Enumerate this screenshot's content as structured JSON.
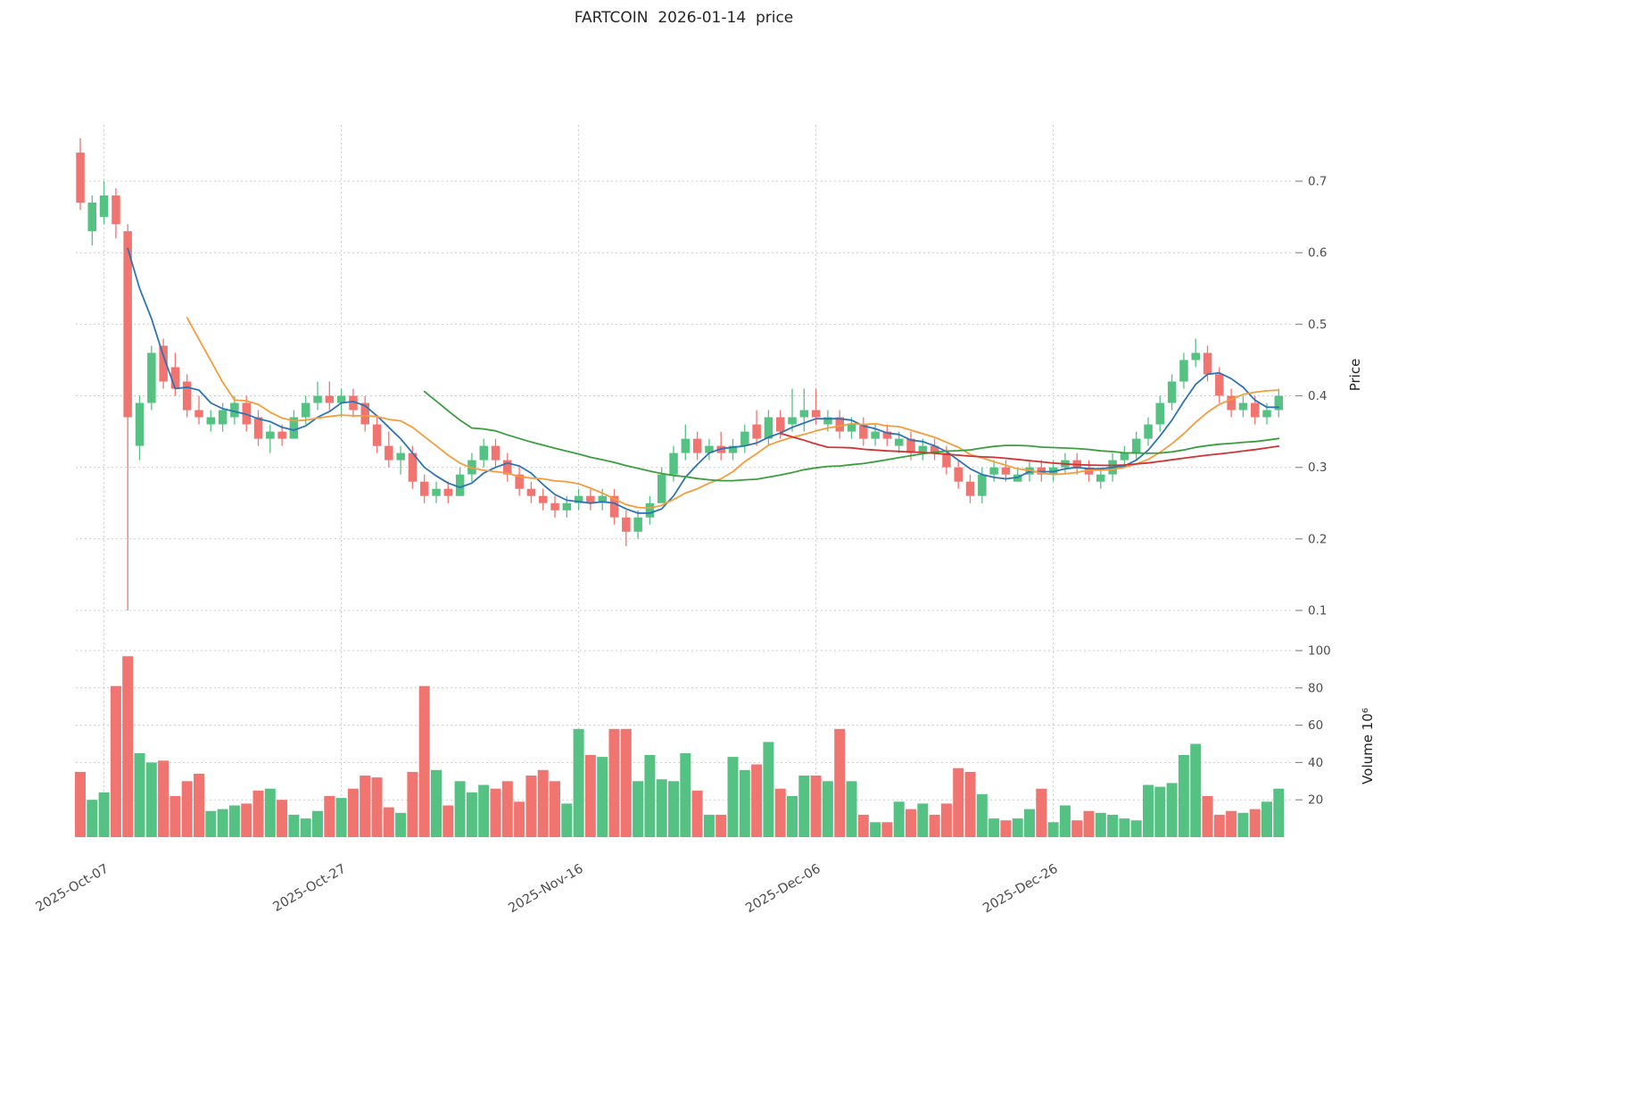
{
  "title": "FARTCOIN  2026-01-14  price",
  "axes": {
    "price_label": "Price",
    "volume_label": "Volume",
    "volume_scale": "10⁶"
  },
  "colors": {
    "up": "#55c284",
    "down": "#f0746f",
    "ma_blue": "#2d74b5",
    "ma_orange": "#f59c3c",
    "ma_green": "#3a9e3f",
    "ma_red": "#cf3333",
    "grid": "#cccccc",
    "tick_text": "#4d4d4d",
    "title_text": "#262626"
  },
  "chart_data": {
    "type": "candlestick+volume",
    "title": "FARTCOIN  2026-01-14  price",
    "ylabel": "Price",
    "volume_ylabel": "Volume 10⁶",
    "grid": true,
    "price_ticks": [
      0.1,
      0.2,
      0.3,
      0.4,
      0.5,
      0.6,
      0.7
    ],
    "volume_ticks": [
      20,
      40,
      60,
      80,
      100
    ],
    "x_ticks": {
      "labels": [
        "2025-Oct-07",
        "2025-Oct-27",
        "2025-Nov-16",
        "2025-Dec-06",
        "2025-Dec-26"
      ],
      "indices": [
        2,
        22,
        42,
        62,
        82
      ]
    },
    "moving_averages": [
      {
        "name": "ma-5",
        "period": 5,
        "color_key": "ma_blue"
      },
      {
        "name": "ma-10",
        "period": 10,
        "color_key": "ma_orange"
      },
      {
        "name": "ma-30",
        "period": 30,
        "color_key": "ma_green"
      },
      {
        "name": "ma-60",
        "period": 60,
        "color_key": "ma_red"
      }
    ],
    "dates": [
      "2025-10-05",
      "2025-10-06",
      "2025-10-07",
      "2025-10-08",
      "2025-10-09",
      "2025-10-10",
      "2025-10-11",
      "2025-10-12",
      "2025-10-13",
      "2025-10-14",
      "2025-10-15",
      "2025-10-16",
      "2025-10-17",
      "2025-10-18",
      "2025-10-19",
      "2025-10-20",
      "2025-10-21",
      "2025-10-22",
      "2025-10-23",
      "2025-10-24",
      "2025-10-25",
      "2025-10-26",
      "2025-10-27",
      "2025-10-28",
      "2025-10-29",
      "2025-10-30",
      "2025-10-31",
      "2025-11-01",
      "2025-11-02",
      "2025-11-03",
      "2025-11-04",
      "2025-11-05",
      "2025-11-06",
      "2025-11-07",
      "2025-11-08",
      "2025-11-09",
      "2025-11-10",
      "2025-11-11",
      "2025-11-12",
      "2025-11-13",
      "2025-11-14",
      "2025-11-15",
      "2025-11-16",
      "2025-11-17",
      "2025-11-18",
      "2025-11-19",
      "2025-11-20",
      "2025-11-21",
      "2025-11-22",
      "2025-11-23",
      "2025-11-24",
      "2025-11-25",
      "2025-11-26",
      "2025-11-27",
      "2025-11-28",
      "2025-11-29",
      "2025-11-30",
      "2025-12-01",
      "2025-12-02",
      "2025-12-03",
      "2025-12-04",
      "2025-12-05",
      "2025-12-06",
      "2025-12-07",
      "2025-12-08",
      "2025-12-09",
      "2025-12-10",
      "2025-12-11",
      "2025-12-12",
      "2025-12-13",
      "2025-12-14",
      "2025-12-15",
      "2025-12-16",
      "2025-12-17",
      "2025-12-18",
      "2025-12-19",
      "2025-12-20",
      "2025-12-21",
      "2025-12-22",
      "2025-12-23",
      "2025-12-24",
      "2025-12-25",
      "2025-12-26",
      "2025-12-27",
      "2025-12-28",
      "2025-12-29",
      "2025-12-30",
      "2025-12-31",
      "2026-01-01",
      "2026-01-02",
      "2026-01-03",
      "2026-01-04",
      "2026-01-05",
      "2026-01-06",
      "2026-01-07",
      "2026-01-08",
      "2026-01-09",
      "2026-01-10",
      "2026-01-11",
      "2026-01-12",
      "2026-01-13",
      "2026-01-14"
    ],
    "ohlc": [
      [
        0.74,
        0.76,
        0.66,
        0.67
      ],
      [
        0.63,
        0.68,
        0.61,
        0.67
      ],
      [
        0.65,
        0.7,
        0.64,
        0.68
      ],
      [
        0.68,
        0.69,
        0.62,
        0.64
      ],
      [
        0.63,
        0.64,
        0.1,
        0.37
      ],
      [
        0.33,
        0.4,
        0.31,
        0.39
      ],
      [
        0.39,
        0.47,
        0.38,
        0.46
      ],
      [
        0.47,
        0.48,
        0.41,
        0.42
      ],
      [
        0.44,
        0.46,
        0.4,
        0.41
      ],
      [
        0.42,
        0.43,
        0.37,
        0.38
      ],
      [
        0.38,
        0.4,
        0.36,
        0.37
      ],
      [
        0.36,
        0.38,
        0.35,
        0.37
      ],
      [
        0.36,
        0.39,
        0.35,
        0.38
      ],
      [
        0.37,
        0.4,
        0.36,
        0.39
      ],
      [
        0.39,
        0.4,
        0.35,
        0.36
      ],
      [
        0.37,
        0.38,
        0.33,
        0.34
      ],
      [
        0.34,
        0.36,
        0.32,
        0.35
      ],
      [
        0.35,
        0.36,
        0.33,
        0.34
      ],
      [
        0.34,
        0.38,
        0.34,
        0.37
      ],
      [
        0.37,
        0.4,
        0.36,
        0.39
      ],
      [
        0.39,
        0.42,
        0.38,
        0.4
      ],
      [
        0.4,
        0.42,
        0.38,
        0.39
      ],
      [
        0.39,
        0.41,
        0.37,
        0.4
      ],
      [
        0.4,
        0.41,
        0.37,
        0.38
      ],
      [
        0.39,
        0.4,
        0.35,
        0.36
      ],
      [
        0.36,
        0.37,
        0.32,
        0.33
      ],
      [
        0.33,
        0.35,
        0.3,
        0.31
      ],
      [
        0.31,
        0.33,
        0.29,
        0.32
      ],
      [
        0.32,
        0.33,
        0.27,
        0.28
      ],
      [
        0.28,
        0.29,
        0.25,
        0.26
      ],
      [
        0.26,
        0.28,
        0.25,
        0.27
      ],
      [
        0.27,
        0.28,
        0.25,
        0.26
      ],
      [
        0.26,
        0.3,
        0.26,
        0.29
      ],
      [
        0.29,
        0.32,
        0.28,
        0.31
      ],
      [
        0.31,
        0.34,
        0.3,
        0.33
      ],
      [
        0.33,
        0.34,
        0.3,
        0.31
      ],
      [
        0.31,
        0.32,
        0.28,
        0.29
      ],
      [
        0.29,
        0.3,
        0.26,
        0.27
      ],
      [
        0.27,
        0.28,
        0.25,
        0.26
      ],
      [
        0.26,
        0.27,
        0.24,
        0.25
      ],
      [
        0.25,
        0.26,
        0.23,
        0.24
      ],
      [
        0.24,
        0.26,
        0.23,
        0.25
      ],
      [
        0.25,
        0.27,
        0.24,
        0.26
      ],
      [
        0.26,
        0.27,
        0.24,
        0.25
      ],
      [
        0.25,
        0.27,
        0.24,
        0.26
      ],
      [
        0.26,
        0.27,
        0.22,
        0.23
      ],
      [
        0.23,
        0.24,
        0.19,
        0.21
      ],
      [
        0.21,
        0.24,
        0.2,
        0.23
      ],
      [
        0.23,
        0.26,
        0.22,
        0.25
      ],
      [
        0.25,
        0.3,
        0.25,
        0.29
      ],
      [
        0.29,
        0.33,
        0.28,
        0.32
      ],
      [
        0.32,
        0.36,
        0.31,
        0.34
      ],
      [
        0.34,
        0.35,
        0.31,
        0.32
      ],
      [
        0.32,
        0.34,
        0.31,
        0.33
      ],
      [
        0.33,
        0.35,
        0.31,
        0.32
      ],
      [
        0.32,
        0.34,
        0.31,
        0.33
      ],
      [
        0.33,
        0.36,
        0.32,
        0.35
      ],
      [
        0.36,
        0.38,
        0.33,
        0.34
      ],
      [
        0.34,
        0.38,
        0.33,
        0.37
      ],
      [
        0.37,
        0.38,
        0.34,
        0.35
      ],
      [
        0.36,
        0.41,
        0.35,
        0.37
      ],
      [
        0.37,
        0.41,
        0.35,
        0.38
      ],
      [
        0.38,
        0.41,
        0.36,
        0.37
      ],
      [
        0.36,
        0.38,
        0.35,
        0.37
      ],
      [
        0.37,
        0.38,
        0.34,
        0.35
      ],
      [
        0.35,
        0.37,
        0.34,
        0.36
      ],
      [
        0.36,
        0.37,
        0.33,
        0.34
      ],
      [
        0.34,
        0.36,
        0.33,
        0.35
      ],
      [
        0.35,
        0.36,
        0.33,
        0.34
      ],
      [
        0.33,
        0.35,
        0.32,
        0.34
      ],
      [
        0.34,
        0.35,
        0.31,
        0.32
      ],
      [
        0.32,
        0.34,
        0.31,
        0.33
      ],
      [
        0.33,
        0.34,
        0.31,
        0.32
      ],
      [
        0.32,
        0.33,
        0.29,
        0.3
      ],
      [
        0.3,
        0.31,
        0.27,
        0.28
      ],
      [
        0.28,
        0.29,
        0.25,
        0.26
      ],
      [
        0.26,
        0.3,
        0.25,
        0.29
      ],
      [
        0.29,
        0.31,
        0.28,
        0.3
      ],
      [
        0.3,
        0.31,
        0.28,
        0.29
      ],
      [
        0.28,
        0.3,
        0.28,
        0.29
      ],
      [
        0.29,
        0.31,
        0.28,
        0.3
      ],
      [
        0.3,
        0.31,
        0.28,
        0.29
      ],
      [
        0.29,
        0.31,
        0.28,
        0.3
      ],
      [
        0.3,
        0.32,
        0.29,
        0.31
      ],
      [
        0.31,
        0.32,
        0.29,
        0.3
      ],
      [
        0.3,
        0.31,
        0.28,
        0.29
      ],
      [
        0.28,
        0.3,
        0.27,
        0.29
      ],
      [
        0.29,
        0.32,
        0.28,
        0.31
      ],
      [
        0.31,
        0.33,
        0.3,
        0.32
      ],
      [
        0.32,
        0.35,
        0.31,
        0.34
      ],
      [
        0.34,
        0.37,
        0.33,
        0.36
      ],
      [
        0.36,
        0.4,
        0.35,
        0.39
      ],
      [
        0.39,
        0.43,
        0.38,
        0.42
      ],
      [
        0.42,
        0.46,
        0.41,
        0.45
      ],
      [
        0.45,
        0.48,
        0.44,
        0.46
      ],
      [
        0.46,
        0.47,
        0.42,
        0.43
      ],
      [
        0.43,
        0.44,
        0.39,
        0.4
      ],
      [
        0.4,
        0.41,
        0.37,
        0.38
      ],
      [
        0.38,
        0.4,
        0.37,
        0.39
      ],
      [
        0.39,
        0.4,
        0.36,
        0.37
      ],
      [
        0.37,
        0.39,
        0.36,
        0.38
      ],
      [
        0.38,
        0.41,
        0.37,
        0.4
      ]
    ],
    "volume": [
      35,
      20,
      24,
      81,
      97,
      45,
      40,
      41,
      22,
      30,
      34,
      14,
      15,
      17,
      18,
      25,
      26,
      20,
      12,
      10,
      14,
      22,
      21,
      26,
      33,
      32,
      16,
      13,
      35,
      81,
      36,
      17,
      30,
      24,
      28,
      26,
      30,
      19,
      33,
      36,
      30,
      18,
      58,
      44,
      43,
      58,
      58,
      30,
      44,
      31,
      30,
      45,
      25,
      12,
      12,
      43,
      36,
      39,
      51,
      26,
      22,
      33,
      33,
      30,
      58,
      30,
      12,
      8,
      8,
      19,
      15,
      18,
      12,
      18,
      37,
      35,
      23,
      10,
      9,
      10,
      15,
      26,
      8,
      17,
      9,
      14,
      13,
      12,
      10,
      9,
      28,
      27,
      29,
      44,
      50,
      22,
      12,
      14,
      13,
      15,
      19,
      26
    ]
  }
}
